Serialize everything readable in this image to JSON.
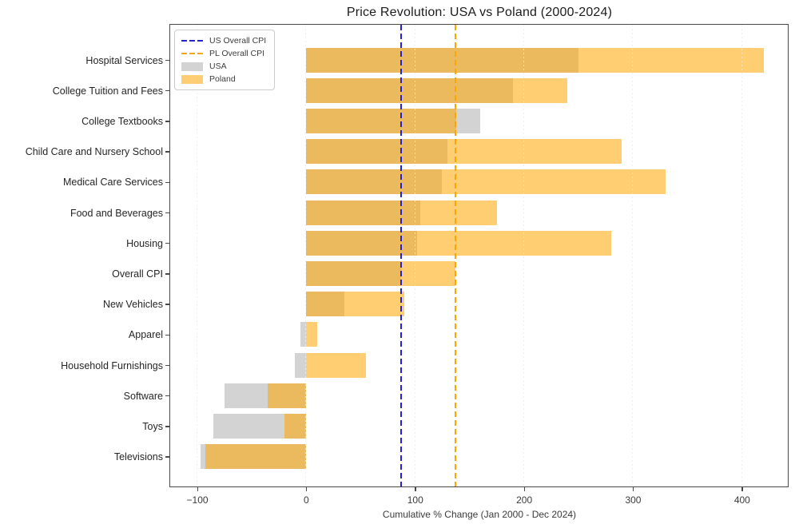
{
  "figure": {
    "title": "Price Revolution: USA vs Poland (2000-2024)",
    "x_axis_label": "Cumulative % Change (Jan 2000 - Dec 2024)"
  },
  "legend": {
    "items": [
      {
        "label": "US Overall CPI",
        "kind": "dashed-line",
        "color": "#2222dd"
      },
      {
        "label": "PL Overall CPI",
        "kind": "dashed-line",
        "color": "#ffa500"
      },
      {
        "label": "USA",
        "kind": "patch",
        "color": "#d3d3d3"
      },
      {
        "label": "Poland",
        "kind": "patch",
        "color": "#ffcd73"
      }
    ]
  },
  "colors": {
    "usa_bar": "#d3d3d3",
    "poland_bar": "rgba(255,165,0,0.55)",
    "overlap_blend": "#ebba5f",
    "us_cpi_line": "#2222dd",
    "pl_cpi_line": "#ffa500",
    "spine": "#4a4a4a"
  },
  "chart_data": {
    "type": "bar",
    "orientation": "horizontal",
    "title": "Price Revolution: USA vs Poland (2000-2024)",
    "xlabel": "Cumulative % Change (Jan 2000 - Dec 2024)",
    "categories": [
      "Hospital Services",
      "College Tuition and Fees",
      "College Textbooks",
      "Child Care and Nursery School",
      "Medical Care Services",
      "Food and Beverages",
      "Housing",
      "Overall CPI",
      "New Vehicles",
      "Apparel",
      "Household Furnishings",
      "Software",
      "Toys",
      "Televisions"
    ],
    "series": [
      {
        "name": "USA",
        "color": "#d3d3d3",
        "values": [
          250,
          190,
          160,
          130,
          125,
          105,
          102,
          87,
          35,
          -5,
          -10,
          -75,
          -85,
          -97
        ]
      },
      {
        "name": "Poland",
        "color": "rgba(255,165,0,0.55)",
        "values": [
          420,
          240,
          138,
          290,
          330,
          175,
          280,
          137,
          90,
          10,
          55,
          -35,
          -20,
          -92
        ]
      }
    ],
    "reference_lines": [
      {
        "name": "US Overall CPI",
        "value": 87,
        "color": "#2222dd",
        "style": "dashed"
      },
      {
        "name": "PL Overall CPI",
        "value": 137,
        "color": "#ffa500",
        "style": "dashed"
      }
    ],
    "x_ticks": [
      -100,
      0,
      100,
      200,
      300,
      400
    ],
    "x_tick_labels": [
      "−100",
      "0",
      "100",
      "200",
      "300",
      "400"
    ],
    "xlim": [
      -124.6,
      445.2
    ],
    "grid": "x-dotted-vertical",
    "legend_position": "upper-left",
    "bars_overlap": "USA and Poland bars are semi-transparent and drawn from 0, overlapping in place"
  }
}
